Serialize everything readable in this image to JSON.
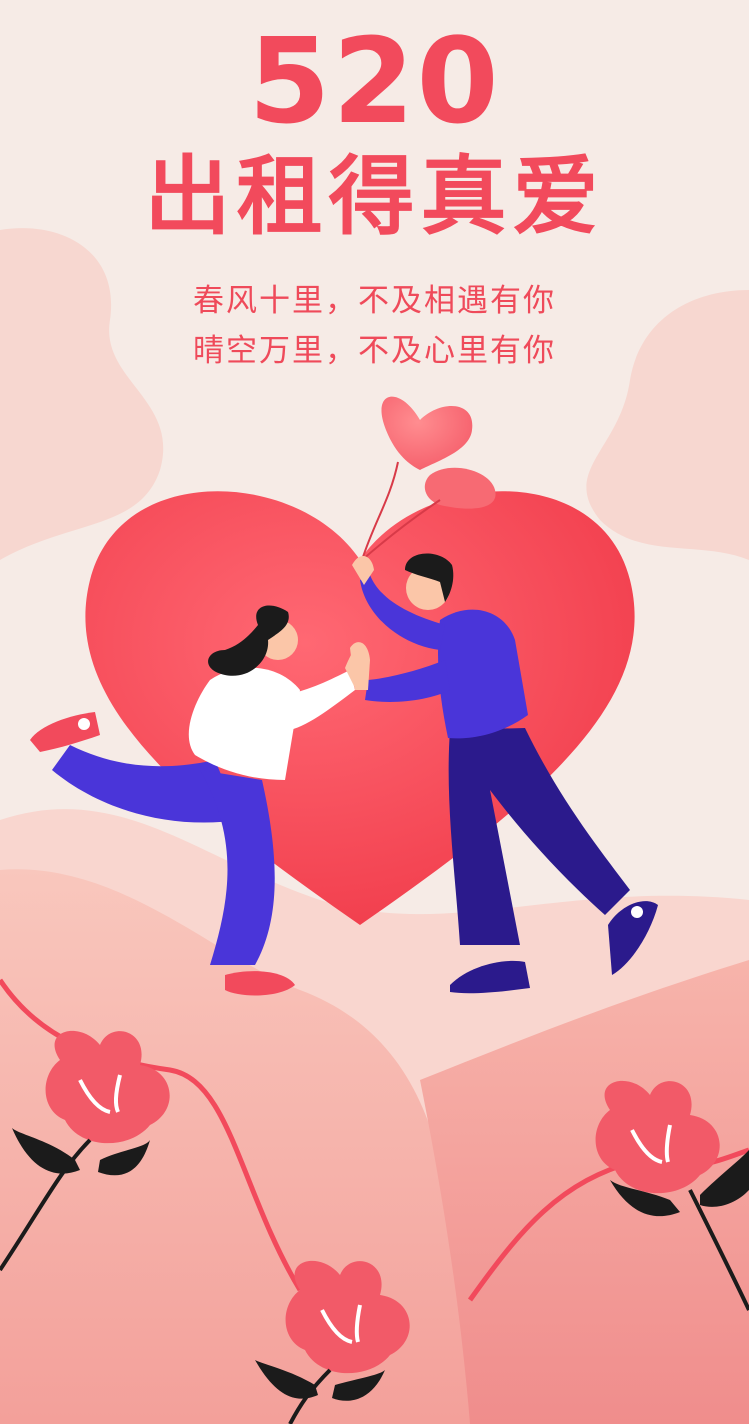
{
  "poster": {
    "headline": "520",
    "subheadline": "出租得真爱",
    "verse_line_1": "春风十里，不及相遇有你",
    "verse_line_2": "晴空万里，不及心里有你"
  },
  "colors": {
    "background": "#f6ebe6",
    "accent_red": "#f24a5c",
    "heart": "#f4505e",
    "clothing_blue": "#4a35d9",
    "navy": "#2b1a8c"
  },
  "illustration": {
    "icons": [
      "heart-balloon-icon",
      "big-heart-icon",
      "couple-figures",
      "flower-icon"
    ]
  }
}
